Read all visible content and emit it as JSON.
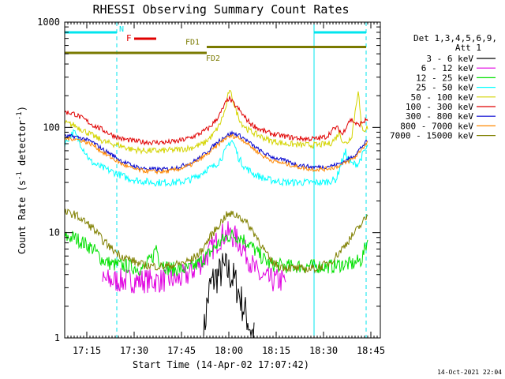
{
  "chart_data": {
    "type": "line",
    "title": "RHESSI Observing Summary Count Rates",
    "xlabel": "Start Time (14-Apr-02 17:07:42)",
    "ylabel_main": "Count Rate (s",
    "ylabel_sup1": "-1",
    "ylabel_mid": " detector",
    "ylabel_sup2": "-1",
    "ylabel_end": ")",
    "x_range_min": [
      0,
      100
    ],
    "y_scale": "log",
    "y_range": [
      1,
      1000
    ],
    "x_ticks": [
      {
        "min": 7,
        "label": "17:15"
      },
      {
        "min": 22,
        "label": "17:30"
      },
      {
        "min": 37,
        "label": "17:45"
      },
      {
        "min": 52,
        "label": "18:00"
      },
      {
        "min": 67,
        "label": "18:15"
      },
      {
        "min": 82,
        "label": "18:30"
      },
      {
        "min": 97,
        "label": "18:45"
      }
    ],
    "y_ticks": [
      {
        "value": 1,
        "label": "1"
      },
      {
        "value": 10,
        "label": "10"
      },
      {
        "value": 100,
        "label": "100"
      },
      {
        "value": 1000,
        "label": "1000"
      }
    ],
    "legend_header": [
      "Det 1,3,4,5,6,9,",
      "Att 1"
    ],
    "timestamp": "14-Oct-2021 22:04",
    "night_markers": [
      {
        "label": "N",
        "start": 0,
        "end": 16.5,
        "color": "#00e5ee"
      },
      {
        "label": "",
        "start": 79,
        "end": 95.5,
        "color": "#00e5ee"
      }
    ],
    "flare_marker": {
      "label": "F",
      "start": 22,
      "end": 29,
      "color": "#e00000"
    },
    "fd_markers": [
      {
        "label": "FD1",
        "start": 45,
        "end": 95.5,
        "value": 580,
        "color": "#7a7a00"
      },
      {
        "label": "FD2",
        "start": 0,
        "end": 45,
        "value": 510,
        "color": "#7a7a00"
      }
    ],
    "dashed_lines_min": [
      16.5,
      95.5
    ],
    "solid_lines_min": [
      79
    ],
    "series": [
      {
        "name": "3 - 6 keV",
        "color": "#000000",
        "points": [
          [
            44,
            1
          ],
          [
            45,
            2
          ],
          [
            46,
            3
          ],
          [
            47,
            3.5
          ],
          [
            48,
            3.8
          ],
          [
            49,
            4
          ],
          [
            50,
            4.5
          ],
          [
            51,
            4.5
          ],
          [
            52,
            4.2
          ],
          [
            53,
            3.8
          ],
          [
            54,
            3.4
          ],
          [
            55,
            2.8
          ],
          [
            56,
            2.2
          ],
          [
            57,
            1.8
          ],
          [
            58,
            1.5
          ],
          [
            59,
            1.2
          ],
          [
            60,
            1
          ]
        ]
      },
      {
        "name": "6 - 12 keV",
        "color": "#e000e0",
        "points": [
          [
            12,
            3.5
          ],
          [
            15,
            3.5
          ],
          [
            18,
            3.5
          ],
          [
            21,
            3.5
          ],
          [
            24,
            3.5
          ],
          [
            27,
            3.5
          ],
          [
            30,
            3.5
          ],
          [
            33,
            3.6
          ],
          [
            36,
            3.6
          ],
          [
            39,
            4
          ],
          [
            42,
            4.8
          ],
          [
            45,
            6
          ],
          [
            48,
            8
          ],
          [
            50,
            9.5
          ],
          [
            52,
            9.8
          ],
          [
            54,
            9
          ],
          [
            56,
            7.5
          ],
          [
            58,
            6
          ],
          [
            60,
            4.5
          ],
          [
            62,
            3.8
          ],
          [
            64,
            3.6
          ],
          [
            66,
            3.5
          ],
          [
            70,
            3.5
          ]
        ]
      },
      {
        "name": "12 - 25 keV",
        "color": "#00e000",
        "points": [
          [
            0,
            9
          ],
          [
            3,
            9
          ],
          [
            6,
            8
          ],
          [
            9,
            7
          ],
          [
            12,
            5.5
          ],
          [
            15,
            5
          ],
          [
            20,
            4.8
          ],
          [
            25,
            4.5
          ],
          [
            28,
            6
          ],
          [
            29,
            7.5
          ],
          [
            30,
            5.5
          ],
          [
            33,
            4.5
          ],
          [
            36,
            4.5
          ],
          [
            39,
            4.5
          ],
          [
            42,
            5
          ],
          [
            45,
            6
          ],
          [
            48,
            7.5
          ],
          [
            51,
            9
          ],
          [
            53,
            9.5
          ],
          [
            56,
            9
          ],
          [
            59,
            7.5
          ],
          [
            62,
            6
          ],
          [
            65,
            5
          ],
          [
            70,
            4.8
          ],
          [
            75,
            4.8
          ],
          [
            80,
            4.8
          ],
          [
            85,
            4.8
          ],
          [
            88,
            5
          ],
          [
            91,
            5
          ],
          [
            94,
            5.5
          ],
          [
            96,
            8.5
          ]
        ]
      },
      {
        "name": "25 - 50 keV",
        "color": "#00ffff",
        "points": [
          [
            0,
            70
          ],
          [
            2,
            85
          ],
          [
            3,
            90
          ],
          [
            5,
            70
          ],
          [
            7,
            55
          ],
          [
            8,
            48
          ],
          [
            10,
            44
          ],
          [
            13,
            40
          ],
          [
            16,
            37
          ],
          [
            20,
            33
          ],
          [
            24,
            31
          ],
          [
            28,
            30
          ],
          [
            32,
            30
          ],
          [
            36,
            30
          ],
          [
            40,
            32
          ],
          [
            43,
            36
          ],
          [
            45,
            40
          ],
          [
            47,
            42
          ],
          [
            49,
            48
          ],
          [
            51,
            60
          ],
          [
            52,
            70
          ],
          [
            53,
            75
          ],
          [
            54,
            65
          ],
          [
            55,
            52
          ],
          [
            57,
            42
          ],
          [
            60,
            36
          ],
          [
            64,
            32
          ],
          [
            70,
            30
          ],
          [
            76,
            30
          ],
          [
            82,
            30
          ],
          [
            86,
            32
          ],
          [
            88,
            50
          ],
          [
            89,
            58
          ],
          [
            90,
            48
          ],
          [
            91,
            45
          ],
          [
            93,
            45
          ],
          [
            95,
            60
          ],
          [
            96,
            65
          ]
        ]
      },
      {
        "name": "50 - 100 keV",
        "color": "#d4d400",
        "points": [
          [
            0,
            110
          ],
          [
            3,
            105
          ],
          [
            7,
            90
          ],
          [
            10,
            80
          ],
          [
            13,
            72
          ],
          [
            17,
            68
          ],
          [
            21,
            62
          ],
          [
            25,
            60
          ],
          [
            30,
            60
          ],
          [
            35,
            61
          ],
          [
            40,
            64
          ],
          [
            44,
            70
          ],
          [
            47,
            85
          ],
          [
            49,
            105
          ],
          [
            51,
            150
          ],
          [
            52,
            220
          ],
          [
            53,
            200
          ],
          [
            54,
            150
          ],
          [
            56,
            110
          ],
          [
            58,
            95
          ],
          [
            61,
            85
          ],
          [
            65,
            75
          ],
          [
            70,
            70
          ],
          [
            75,
            68
          ],
          [
            80,
            68
          ],
          [
            84,
            70
          ],
          [
            86,
            80
          ],
          [
            87,
            90
          ],
          [
            88,
            75
          ],
          [
            89,
            70
          ],
          [
            90,
            75
          ],
          [
            91,
            85
          ],
          [
            92,
            140
          ],
          [
            93,
            230
          ],
          [
            94,
            100
          ],
          [
            95,
            95
          ],
          [
            96,
            100
          ]
        ]
      },
      {
        "name": "100 - 300 keV",
        "color": "#e00000",
        "points": [
          [
            0,
            140
          ],
          [
            3,
            135
          ],
          [
            6,
            120
          ],
          [
            9,
            105
          ],
          [
            12,
            95
          ],
          [
            15,
            85
          ],
          [
            18,
            78
          ],
          [
            21,
            75
          ],
          [
            24,
            73
          ],
          [
            28,
            72
          ],
          [
            32,
            72
          ],
          [
            36,
            74
          ],
          [
            40,
            80
          ],
          [
            43,
            88
          ],
          [
            46,
            100
          ],
          [
            49,
            130
          ],
          [
            51,
            170
          ],
          [
            52,
            190
          ],
          [
            53,
            175
          ],
          [
            55,
            150
          ],
          [
            57,
            125
          ],
          [
            59,
            108
          ],
          [
            62,
            95
          ],
          [
            65,
            88
          ],
          [
            68,
            84
          ],
          [
            72,
            80
          ],
          [
            76,
            78
          ],
          [
            80,
            78
          ],
          [
            83,
            82
          ],
          [
            85,
            95
          ],
          [
            86,
            100
          ],
          [
            87,
            95
          ],
          [
            88,
            85
          ],
          [
            89,
            100
          ],
          [
            90,
            115
          ],
          [
            91,
            118
          ],
          [
            92,
            110
          ],
          [
            93,
            105
          ],
          [
            95,
            115
          ],
          [
            96,
            120
          ]
        ]
      },
      {
        "name": "300 - 800 keV",
        "color": "#0000d0",
        "points": [
          [
            0,
            82
          ],
          [
            3,
            82
          ],
          [
            6,
            78
          ],
          [
            9,
            72
          ],
          [
            12,
            62
          ],
          [
            15,
            55
          ],
          [
            18,
            48
          ],
          [
            21,
            44
          ],
          [
            24,
            41
          ],
          [
            28,
            40
          ],
          [
            32,
            40
          ],
          [
            36,
            42
          ],
          [
            40,
            46
          ],
          [
            43,
            52
          ],
          [
            46,
            62
          ],
          [
            49,
            75
          ],
          [
            51,
            83
          ],
          [
            53,
            88
          ],
          [
            55,
            85
          ],
          [
            57,
            78
          ],
          [
            60,
            66
          ],
          [
            63,
            57
          ],
          [
            66,
            52
          ],
          [
            70,
            48
          ],
          [
            74,
            44
          ],
          [
            78,
            42
          ],
          [
            82,
            42
          ],
          [
            86,
            44
          ],
          [
            89,
            48
          ],
          [
            92,
            55
          ],
          [
            94,
            65
          ],
          [
            96,
            75
          ]
        ]
      },
      {
        "name": "800 - 7000 keV",
        "color": "#ff8800",
        "points": [
          [
            0,
            78
          ],
          [
            3,
            78
          ],
          [
            6,
            74
          ],
          [
            9,
            68
          ],
          [
            12,
            58
          ],
          [
            15,
            51
          ],
          [
            18,
            45
          ],
          [
            21,
            41
          ],
          [
            24,
            39
          ],
          [
            28,
            38
          ],
          [
            32,
            38
          ],
          [
            36,
            40
          ],
          [
            40,
            44
          ],
          [
            43,
            50
          ],
          [
            46,
            58
          ],
          [
            49,
            70
          ],
          [
            51,
            79
          ],
          [
            53,
            83
          ],
          [
            55,
            80
          ],
          [
            57,
            74
          ],
          [
            60,
            62
          ],
          [
            63,
            53
          ],
          [
            66,
            48
          ],
          [
            70,
            45
          ],
          [
            74,
            42
          ],
          [
            78,
            40
          ],
          [
            82,
            40
          ],
          [
            86,
            42
          ],
          [
            89,
            46
          ],
          [
            92,
            52
          ],
          [
            94,
            62
          ],
          [
            96,
            72
          ]
        ]
      },
      {
        "name": "7000 - 15000 keV",
        "color": "#808000",
        "points": [
          [
            0,
            15.5
          ],
          [
            3,
            15
          ],
          [
            6,
            13
          ],
          [
            9,
            11
          ],
          [
            12,
            8.5
          ],
          [
            15,
            7
          ],
          [
            18,
            6
          ],
          [
            21,
            5.5
          ],
          [
            24,
            5
          ],
          [
            28,
            4.8
          ],
          [
            32,
            4.8
          ],
          [
            36,
            5
          ],
          [
            40,
            5.5
          ],
          [
            43,
            6.5
          ],
          [
            46,
            9
          ],
          [
            49,
            12
          ],
          [
            51,
            14.5
          ],
          [
            53,
            15
          ],
          [
            55,
            14.5
          ],
          [
            57,
            13
          ],
          [
            59,
            11
          ],
          [
            61,
            9
          ],
          [
            63,
            7
          ],
          [
            65,
            5.5
          ],
          [
            68,
            4.8
          ],
          [
            72,
            4.6
          ],
          [
            76,
            4.5
          ],
          [
            80,
            4.6
          ],
          [
            84,
            5.2
          ],
          [
            87,
            6.5
          ],
          [
            90,
            8.5
          ],
          [
            93,
            11
          ],
          [
            96,
            14.5
          ]
        ]
      }
    ]
  }
}
